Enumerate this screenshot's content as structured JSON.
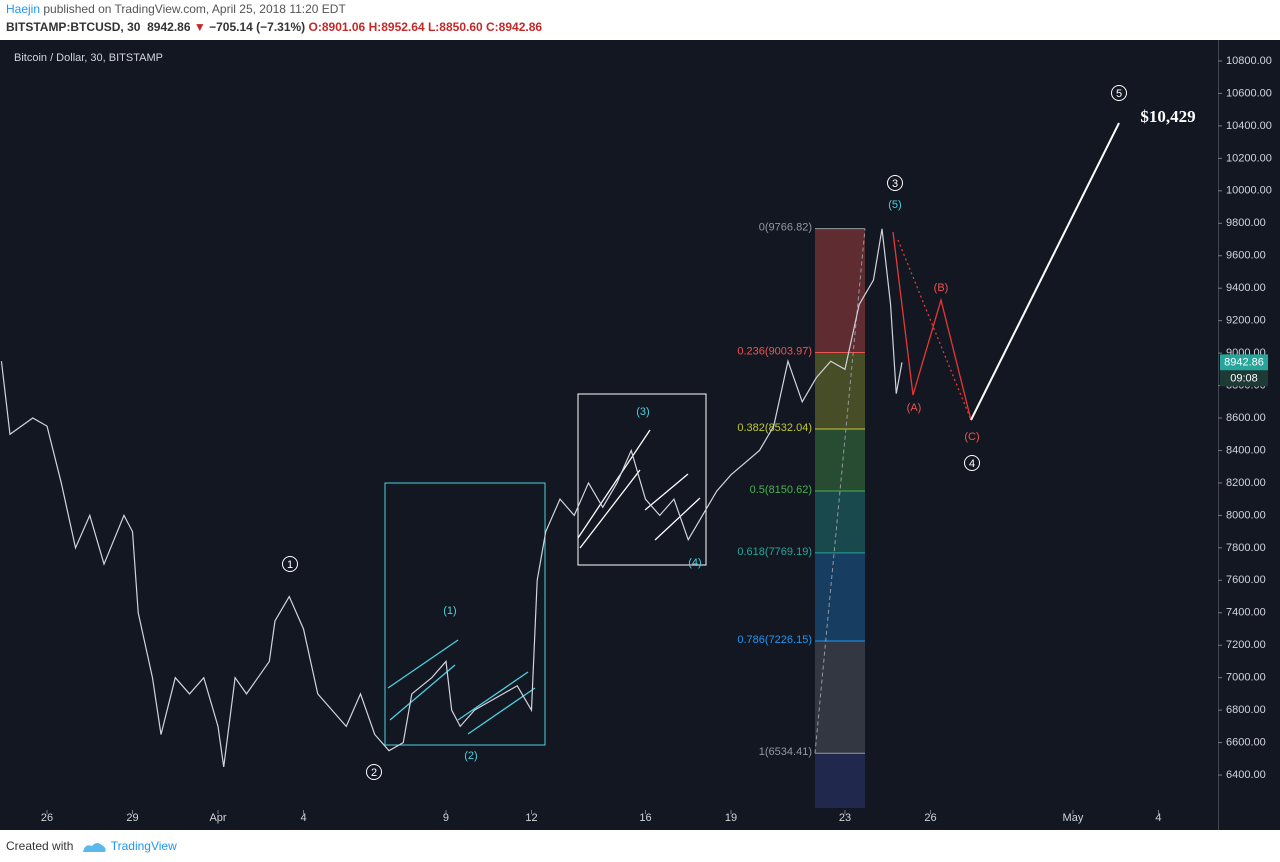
{
  "header": {
    "author": "Haejin",
    "published": "published on TradingView.com, April 25, 2018 11:20 EDT",
    "symbol": "BITSTAMP:BTCUSD, 30",
    "last": "8942.86",
    "arrow": "▼",
    "change": "−705.14 (−7.31%)",
    "open": "O:8901.06",
    "high": "H:8952.64",
    "low": "L:8850.60",
    "close": "C:8942.86"
  },
  "chart_data": {
    "type": "line",
    "title": "Bitcoin / Dollar, 30, BITSTAMP",
    "color": "#d1d4dc",
    "x": [
      -1.6,
      -1.3,
      -0.5,
      0,
      0.5,
      1,
      1.5,
      2,
      2.7,
      3,
      3.2,
      3.7,
      4,
      4.5,
      5,
      5.5,
      6,
      6.2,
      6.6,
      7,
      7.8,
      8,
      8.5,
      9,
      9.5,
      10,
      10.5,
      11,
      11.5,
      12,
      12.5,
      12.8,
      13.5,
      14,
      14.2,
      14.5,
      15,
      16,
      16.5,
      17,
      17.2,
      17.5,
      18,
      18.5,
      19,
      19.5,
      20,
      20.5,
      21,
      21.5,
      22,
      22.5,
      23,
      23.5,
      24,
      25,
      25.5,
      26,
      26.5,
      27,
      27.5,
      28,
      28.5,
      29,
      29.3,
      29.6,
      29.8,
      30
    ],
    "values": [
      8950,
      8500,
      8600,
      8550,
      8200,
      7800,
      8000,
      7700,
      8000,
      7900,
      7400,
      7000,
      6650,
      7000,
      6900,
      7000,
      6700,
      6450,
      7000,
      6900,
      7100,
      7350,
      7500,
      7300,
      6900,
      6800,
      6700,
      6900,
      6650,
      6550,
      6600,
      6900,
      7000,
      7100,
      6800,
      6700,
      6800,
      6900,
      6950,
      6800,
      7600,
      7900,
      8100,
      8000,
      8200,
      8050,
      8200,
      8400,
      8100,
      8000,
      8100,
      7850,
      8000,
      8150,
      8250,
      8400,
      8550,
      8950,
      8700,
      8850,
      8950,
      8900,
      9300,
      9450,
      9766,
      9300,
      8750,
      8942.86
    ],
    "xlim": [
      -1.65,
      41.09
    ],
    "ylim": [
      6123,
      10917
    ],
    "xticks": [
      {
        "value": 0,
        "label": "26"
      },
      {
        "value": 3,
        "label": "29"
      },
      {
        "value": 6,
        "label": "Apr"
      },
      {
        "value": 9,
        "label": "4"
      },
      {
        "value": 14,
        "label": "9"
      },
      {
        "value": 17,
        "label": "12"
      },
      {
        "value": 21,
        "label": "16"
      },
      {
        "value": 24,
        "label": "19"
      },
      {
        "value": 28,
        "label": "23"
      },
      {
        "value": 31,
        "label": "26"
      },
      {
        "value": 36,
        "label": "May"
      },
      {
        "value": 39,
        "label": "4"
      }
    ],
    "yticks": [
      {
        "value": 6400,
        "label": "6400.00"
      },
      {
        "value": 6600,
        "label": "6600.00"
      },
      {
        "value": 6800,
        "label": "6800.00"
      },
      {
        "value": 7000,
        "label": "7000.00"
      },
      {
        "value": 7200,
        "label": "7200.00"
      },
      {
        "value": 7400,
        "label": "7400.00"
      },
      {
        "value": 7600,
        "label": "7600.00"
      },
      {
        "value": 7800,
        "label": "7800.00"
      },
      {
        "value": 8000,
        "label": "8000.00"
      },
      {
        "value": 8200,
        "label": "8200.00"
      },
      {
        "value": 8400,
        "label": "8400.00"
      },
      {
        "value": 8600,
        "label": "8600.00"
      },
      {
        "value": 8800,
        "label": "8800.00"
      },
      {
        "value": 9000,
        "label": "9000.00"
      },
      {
        "value": 9200,
        "label": "9200.00"
      },
      {
        "value": 9400,
        "label": "9400.00"
      },
      {
        "value": 9600,
        "label": "9600.00"
      },
      {
        "value": 9800,
        "label": "9800.00"
      },
      {
        "value": 10000,
        "label": "10000.00"
      },
      {
        "value": 10200,
        "label": "10200.00"
      },
      {
        "value": 10400,
        "label": "10400.00"
      },
      {
        "value": 10600,
        "label": "10600.00"
      },
      {
        "value": 10800,
        "label": "10800.00"
      }
    ],
    "price_tag": {
      "value": 8942.86,
      "label": "8942.86",
      "timer": "09:08"
    },
    "fib": [
      {
        "value": 9766.82,
        "label": "0(9766.82)",
        "color": "#9598a1"
      },
      {
        "value": 9003.97,
        "label": "0.236(9003.97)",
        "color": "#ef5350"
      },
      {
        "value": 8532.04,
        "label": "0.382(8532.04)",
        "color": "#c0ca33"
      },
      {
        "value": 8150.62,
        "label": "0.5(8150.62)",
        "color": "#4caf50"
      },
      {
        "value": 7769.19,
        "label": "0.618(7769.19)",
        "color": "#26a69a"
      },
      {
        "value": 7226.15,
        "label": "0.786(7226.15)",
        "color": "#2196f3"
      },
      {
        "value": 6534.41,
        "label": "1(6534.41)",
        "color": "#9598a1"
      }
    ],
    "annotations": [
      "1",
      "2",
      "3",
      "4",
      "5",
      "(1)",
      "(2)",
      "(3)",
      "(4)",
      "(5)",
      "(A)",
      "(B)",
      "(C)",
      "$10,429"
    ]
  },
  "footer": {
    "created": "Created with",
    "brand": "TradingView"
  }
}
